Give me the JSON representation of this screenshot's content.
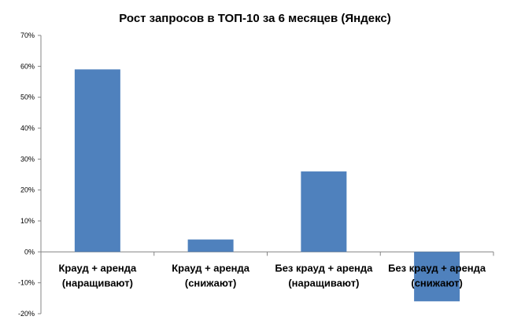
{
  "chart_data": {
    "type": "bar",
    "title": "Рост запросов в ТОП-10 за 6 месяцев (Яндекс)",
    "categories": [
      [
        "Крауд + аренда",
        "(наращивают)"
      ],
      [
        "Крауд + аренда",
        "(снижают)"
      ],
      [
        "Без крауд + аренда",
        "(наращивают)"
      ],
      [
        "Без крауд + аренда",
        "(снижают)"
      ]
    ],
    "values": [
      59,
      4,
      26,
      -16
    ],
    "ylim": [
      -20,
      70
    ],
    "yticks": [
      70,
      60,
      50,
      40,
      30,
      20,
      10,
      0,
      -10,
      -20
    ],
    "ytick_format": "%",
    "xlabel": "",
    "ylabel": "",
    "grid": false,
    "legend": "none",
    "bar_color": "#4f81bd",
    "axis_color": "#868686"
  }
}
